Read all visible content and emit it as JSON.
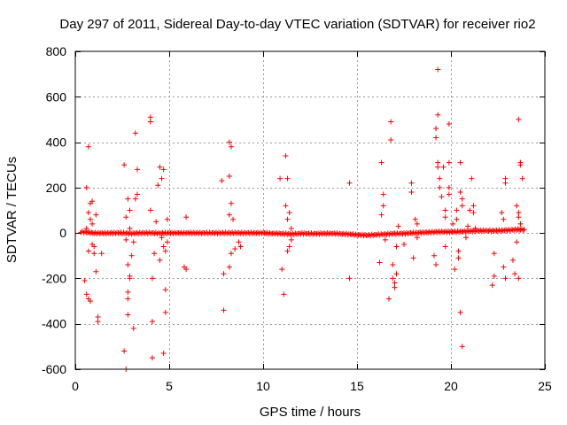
{
  "chart_data": {
    "type": "scatter",
    "title": "Day 297 of 2011, Sidereal Day-to-day VTEC variation (SDTVAR) for receiver rio2",
    "xlabel": "GPS time / hours",
    "ylabel": "SDTVAR / TECUs",
    "xlim": [
      0,
      25
    ],
    "ylim": [
      -600,
      800
    ],
    "xticks": [
      0,
      5,
      10,
      15,
      20,
      25
    ],
    "yticks": [
      -600,
      -400,
      -200,
      0,
      200,
      400,
      600,
      800
    ],
    "grid": true,
    "marker": "+",
    "color": "#ff0000",
    "series": [
      {
        "name": "SDTVAR",
        "baseline": {
          "description": "dense continuous band of points near zero",
          "points": [
            [
              0.3,
              5
            ],
            [
              0.6,
              3
            ],
            [
              1,
              0
            ],
            [
              1.5,
              -1
            ],
            [
              2,
              0
            ],
            [
              2.5,
              0
            ],
            [
              3,
              -2
            ],
            [
              3.5,
              0
            ],
            [
              4,
              0
            ],
            [
              4.5,
              -1
            ],
            [
              5,
              0
            ],
            [
              5.5,
              0
            ],
            [
              6,
              0
            ],
            [
              6.5,
              0
            ],
            [
              7,
              0
            ],
            [
              7.5,
              0
            ],
            [
              8,
              0
            ],
            [
              8.5,
              0
            ],
            [
              9.0,
              0
            ],
            [
              9.5,
              0
            ],
            [
              10,
              0
            ],
            [
              10.5,
              -2
            ],
            [
              11,
              -3
            ],
            [
              11.5,
              -5
            ],
            [
              12,
              -2
            ],
            [
              12.5,
              -3
            ],
            [
              13,
              -3
            ],
            [
              13.5,
              -2
            ],
            [
              14,
              -3
            ],
            [
              14.5,
              -5
            ],
            [
              15,
              -8
            ],
            [
              15.5,
              -10
            ],
            [
              16,
              -8
            ],
            [
              16.5,
              -5
            ],
            [
              17,
              -3
            ],
            [
              17.5,
              -2
            ],
            [
              18,
              0
            ],
            [
              18.5,
              2
            ],
            [
              19,
              4
            ],
            [
              19.5,
              5
            ],
            [
              20,
              5
            ],
            [
              20.5,
              6
            ],
            [
              21,
              8
            ],
            [
              21.5,
              10
            ],
            [
              22,
              10
            ],
            [
              22.5,
              10
            ],
            [
              23,
              12
            ],
            [
              23.5,
              15
            ],
            [
              23.9,
              15
            ]
          ]
        },
        "points": [
          [
            0.5,
            -210
          ],
          [
            0.6,
            200
          ],
          [
            0.6,
            -270
          ],
          [
            0.7,
            380
          ],
          [
            0.7,
            -290
          ],
          [
            0.8,
            -300
          ],
          [
            0.8,
            130
          ],
          [
            0.9,
            140
          ],
          [
            0.7,
            90
          ],
          [
            0.8,
            60
          ],
          [
            0.9,
            40
          ],
          [
            0.6,
            20
          ],
          [
            0.7,
            -80
          ],
          [
            0.9,
            -50
          ],
          [
            1.0,
            -60
          ],
          [
            1.1,
            -170
          ],
          [
            1.1,
            80
          ],
          [
            1.2,
            -370
          ],
          [
            1.2,
            -390
          ],
          [
            1.0,
            -90
          ],
          [
            1.4,
            -90
          ],
          [
            2.6,
            300
          ],
          [
            2.6,
            -520
          ],
          [
            2.7,
            -600
          ],
          [
            2.8,
            -360
          ],
          [
            2.8,
            -260
          ],
          [
            2.8,
            -290
          ],
          [
            2.9,
            -200
          ],
          [
            2.8,
            150
          ],
          [
            2.9,
            100
          ],
          [
            2.7,
            70
          ],
          [
            2.9,
            20
          ],
          [
            3.0,
            -100
          ],
          [
            3.1,
            -420
          ],
          [
            3.2,
            440
          ],
          [
            3.3,
            280
          ],
          [
            3.2,
            150
          ],
          [
            3.3,
            170
          ],
          [
            3.1,
            -40
          ],
          [
            2.7,
            -30
          ],
          [
            2.8,
            -140
          ],
          [
            2.9,
            -190
          ],
          [
            4.0,
            510
          ],
          [
            4.0,
            490
          ],
          [
            4.1,
            -390
          ],
          [
            4.1,
            -550
          ],
          [
            4.0,
            100
          ],
          [
            4.1,
            -200
          ],
          [
            4.2,
            -90
          ],
          [
            4.3,
            50
          ],
          [
            4.4,
            210
          ],
          [
            4.5,
            290
          ],
          [
            4.6,
            240
          ],
          [
            4.5,
            -120
          ],
          [
            4.6,
            -20
          ],
          [
            4.7,
            -530
          ],
          [
            4.7,
            280
          ],
          [
            4.7,
            -60
          ],
          [
            4.8,
            -250
          ],
          [
            4.8,
            -350
          ],
          [
            4.8,
            -80
          ],
          [
            4.9,
            -40
          ],
          [
            4.9,
            60
          ],
          [
            5.8,
            -150
          ],
          [
            5.9,
            -160
          ],
          [
            5.9,
            70
          ],
          [
            7.8,
            230
          ],
          [
            7.9,
            -340
          ],
          [
            7.9,
            -180
          ],
          [
            8.2,
            400
          ],
          [
            8.3,
            380
          ],
          [
            8.2,
            250
          ],
          [
            8.3,
            130
          ],
          [
            8.2,
            80
          ],
          [
            8.2,
            -150
          ],
          [
            8.3,
            -90
          ],
          [
            8.4,
            60
          ],
          [
            8.5,
            -70
          ],
          [
            8.7,
            -40
          ],
          [
            8.8,
            -60
          ],
          [
            10.9,
            240
          ],
          [
            11.0,
            -160
          ],
          [
            11.1,
            -270
          ],
          [
            11.2,
            340
          ],
          [
            11.3,
            240
          ],
          [
            11.2,
            120
          ],
          [
            11.3,
            60
          ],
          [
            11.4,
            90
          ],
          [
            11.3,
            -80
          ],
          [
            11.4,
            -60
          ],
          [
            11.5,
            20
          ],
          [
            11.5,
            -30
          ],
          [
            14.6,
            220
          ],
          [
            14.6,
            -200
          ],
          [
            16.2,
            -130
          ],
          [
            16.3,
            310
          ],
          [
            16.4,
            170
          ],
          [
            16.4,
            120
          ],
          [
            16.3,
            80
          ],
          [
            16.5,
            -30
          ],
          [
            16.7,
            -290
          ],
          [
            16.8,
            490
          ],
          [
            16.8,
            410
          ],
          [
            16.9,
            -200
          ],
          [
            17.0,
            -240
          ],
          [
            17.0,
            -220
          ],
          [
            17.1,
            -180
          ],
          [
            17.1,
            -60
          ],
          [
            16.9,
            -140
          ],
          [
            17.2,
            30
          ],
          [
            17.5,
            -50
          ],
          [
            17.9,
            220
          ],
          [
            17.9,
            180
          ],
          [
            18.0,
            -110
          ],
          [
            18.1,
            60
          ],
          [
            18.2,
            40
          ],
          [
            18.2,
            -20
          ],
          [
            19.1,
            -100
          ],
          [
            19.2,
            -140
          ],
          [
            19.3,
            720
          ],
          [
            19.3,
            520
          ],
          [
            19.2,
            460
          ],
          [
            19.2,
            420
          ],
          [
            19.3,
            310
          ],
          [
            19.3,
            290
          ],
          [
            19.4,
            240
          ],
          [
            19.4,
            200
          ],
          [
            19.5,
            160
          ],
          [
            19.6,
            290
          ],
          [
            19.7,
            100
          ],
          [
            19.7,
            70
          ],
          [
            19.7,
            -60
          ],
          [
            19.9,
            480
          ],
          [
            19.9,
            310
          ],
          [
            19.9,
            200
          ],
          [
            19.9,
            170
          ],
          [
            20.1,
            40
          ],
          [
            20.2,
            -160
          ],
          [
            20.3,
            100
          ],
          [
            20.3,
            60
          ],
          [
            20.4,
            -80
          ],
          [
            20.4,
            -110
          ],
          [
            20.5,
            -350
          ],
          [
            20.6,
            -500
          ],
          [
            20.5,
            310
          ],
          [
            20.5,
            180
          ],
          [
            20.6,
            150
          ],
          [
            20.6,
            120
          ],
          [
            20.8,
            -20
          ],
          [
            20.9,
            30
          ],
          [
            21.0,
            100
          ],
          [
            21.1,
            240
          ],
          [
            21.2,
            120
          ],
          [
            21.2,
            90
          ],
          [
            21.3,
            20
          ],
          [
            22.2,
            -230
          ],
          [
            22.3,
            -190
          ],
          [
            22.3,
            -90
          ],
          [
            22.8,
            -150
          ],
          [
            22.9,
            -200
          ],
          [
            22.9,
            240
          ],
          [
            22.9,
            220
          ],
          [
            22.7,
            90
          ],
          [
            22.8,
            60
          ],
          [
            23.3,
            -120
          ],
          [
            23.4,
            -180
          ],
          [
            23.6,
            -200
          ],
          [
            23.6,
            500
          ],
          [
            23.7,
            300
          ],
          [
            23.7,
            310
          ],
          [
            23.8,
            240
          ],
          [
            23.5,
            120
          ],
          [
            23.6,
            90
          ],
          [
            23.6,
            70
          ],
          [
            23.7,
            40
          ],
          [
            23.5,
            -40
          ]
        ]
      }
    ]
  }
}
